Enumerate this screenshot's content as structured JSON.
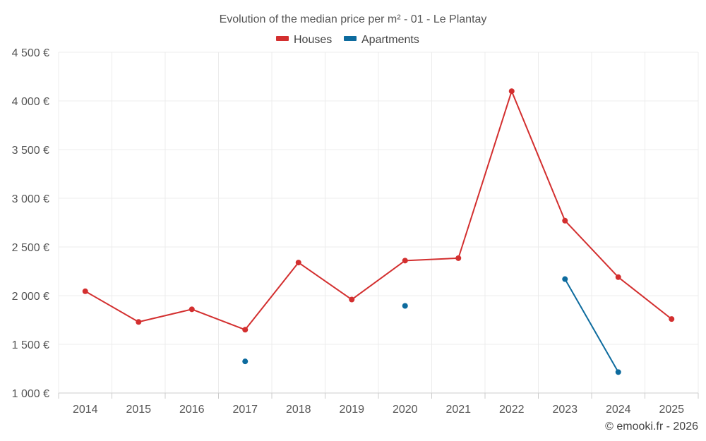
{
  "chart_data": {
    "type": "line",
    "title": "Evolution of the median price per m² - 01 - Le Plantay",
    "categories": [
      "2014",
      "2015",
      "2016",
      "2017",
      "2018",
      "2019",
      "2020",
      "2021",
      "2022",
      "2023",
      "2024",
      "2025"
    ],
    "ylim": [
      1000,
      4500
    ],
    "yticks": [
      1000,
      1500,
      2000,
      2500,
      3000,
      3500,
      4000,
      4500
    ],
    "ytick_labels": [
      "1 000 €",
      "1 500 €",
      "2 000 €",
      "2 500 €",
      "3 000 €",
      "3 500 €",
      "4 000 €",
      "4 500 €"
    ],
    "grid": true,
    "legend_position": "top-center",
    "series": [
      {
        "name": "Houses",
        "color": "#d32f2f",
        "values": [
          2045,
          1730,
          1860,
          1650,
          2340,
          1960,
          2360,
          2385,
          4100,
          2770,
          2190,
          1760
        ]
      },
      {
        "name": "Apartments",
        "color": "#0d6b9e",
        "values": [
          null,
          null,
          null,
          1325,
          null,
          null,
          1895,
          null,
          null,
          2170,
          1215,
          null
        ]
      }
    ]
  },
  "credit": "© emooki.fr - 2026"
}
